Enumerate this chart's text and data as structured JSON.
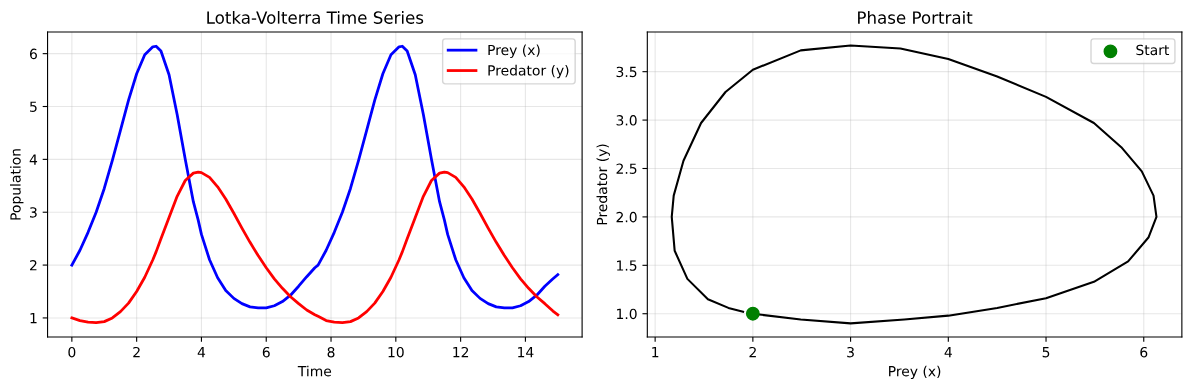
{
  "chart_data": [
    {
      "type": "line",
      "title": "Lotka-Volterra Time Series",
      "xlabel": "Time",
      "ylabel": "Population",
      "x": [
        0,
        0.25,
        0.5,
        0.75,
        1,
        1.25,
        1.5,
        1.75,
        2,
        2.25,
        2.5,
        2.6,
        2.75,
        3,
        3.25,
        3.5,
        3.75,
        3.9,
        4,
        4.25,
        4.5,
        4.75,
        5,
        5.25,
        5.5,
        5.75,
        6,
        6.25,
        6.5,
        6.75,
        7,
        7.25,
        7.5,
        7.6,
        7.85,
        8.1,
        8.35,
        8.6,
        8.85,
        9.1,
        9.35,
        9.6,
        9.85,
        10.1,
        10.2,
        10.35,
        10.6,
        10.85,
        11.1,
        11.35,
        11.5,
        11.6,
        11.85,
        12.1,
        12.35,
        12.6,
        12.85,
        13.1,
        13.35,
        13.6,
        13.85,
        14.1,
        14.35,
        14.6,
        14.85,
        15
      ],
      "series": [
        {
          "name": "Prey (x)",
          "color": "#0000ff",
          "values": [
            2.0,
            2.28,
            2.62,
            3.0,
            3.45,
            3.98,
            4.55,
            5.12,
            5.62,
            5.98,
            6.13,
            6.14,
            6.05,
            5.6,
            4.85,
            4.0,
            3.2,
            2.85,
            2.58,
            2.1,
            1.76,
            1.52,
            1.37,
            1.27,
            1.21,
            1.19,
            1.19,
            1.23,
            1.31,
            1.43,
            1.6,
            1.78,
            1.95,
            2.0,
            2.28,
            2.62,
            3.0,
            3.45,
            3.98,
            4.55,
            5.12,
            5.62,
            5.98,
            6.13,
            6.14,
            6.05,
            5.6,
            4.85,
            4.0,
            3.2,
            2.85,
            2.58,
            2.1,
            1.76,
            1.52,
            1.37,
            1.27,
            1.21,
            1.19,
            1.19,
            1.23,
            1.31,
            1.43,
            1.6,
            1.74,
            1.82
          ]
        },
        {
          "name": "Predator (y)",
          "color": "#ff0000",
          "values": [
            1.0,
            0.95,
            0.92,
            0.91,
            0.93,
            1.0,
            1.12,
            1.28,
            1.5,
            1.77,
            2.1,
            2.25,
            2.5,
            2.9,
            3.3,
            3.6,
            3.74,
            3.76,
            3.75,
            3.66,
            3.48,
            3.25,
            2.98,
            2.7,
            2.43,
            2.18,
            1.95,
            1.74,
            1.56,
            1.4,
            1.27,
            1.15,
            1.06,
            1.03,
            0.95,
            0.92,
            0.91,
            0.93,
            1.0,
            1.12,
            1.28,
            1.5,
            1.77,
            2.1,
            2.25,
            2.5,
            2.9,
            3.3,
            3.6,
            3.74,
            3.76,
            3.75,
            3.66,
            3.48,
            3.25,
            2.98,
            2.7,
            2.43,
            2.18,
            1.95,
            1.74,
            1.56,
            1.4,
            1.27,
            1.13,
            1.06
          ]
        }
      ],
      "xlim": [
        -0.75,
        15.75
      ],
      "xticks": [
        0,
        2,
        4,
        6,
        8,
        10,
        12,
        14
      ],
      "ylim": [
        0.64,
        6.41
      ],
      "yticks": [
        1,
        2,
        3,
        4,
        5,
        6
      ],
      "grid": true,
      "legend": "top right",
      "marker": "none",
      "line_style": "solid"
    },
    {
      "type": "line",
      "title": "Phase Portrait",
      "xlabel": "Prey (x)",
      "ylabel": "Predator (y)",
      "series": [
        {
          "type": "line",
          "color": "#000000",
          "x": [
            2.0,
            2.49,
            3.0,
            3.55,
            4.0,
            4.5,
            5.0,
            5.49,
            5.84,
            6.05,
            6.13,
            6.1,
            5.98,
            5.77,
            5.49,
            5.0,
            4.5,
            4.0,
            3.51,
            3.0,
            2.49,
            2.0,
            1.72,
            1.47,
            1.29,
            1.19,
            1.17,
            1.2,
            1.33,
            1.54,
            1.75,
            1.9
          ],
          "values": [
            1.0,
            0.94,
            0.9,
            0.94,
            0.98,
            1.06,
            1.16,
            1.33,
            1.54,
            1.79,
            2.0,
            2.22,
            2.47,
            2.72,
            2.97,
            3.24,
            3.45,
            3.63,
            3.74,
            3.77,
            3.72,
            3.52,
            3.29,
            2.97,
            2.58,
            2.22,
            2.0,
            1.65,
            1.36,
            1.15,
            1.06,
            1.02
          ]
        },
        {
          "name": "Start",
          "type": "scatter",
          "color": "#008000",
          "marker": "circle",
          "x": [
            2
          ],
          "values": [
            1
          ]
        }
      ],
      "xlim": [
        0.92,
        6.39
      ],
      "xticks": [
        1,
        2,
        3,
        4,
        5,
        6
      ],
      "ylim": [
        0.76,
        3.91
      ],
      "yticks": [
        {
          "value": 1.0,
          "label": "1.0"
        },
        {
          "value": 1.5,
          "label": "1.5"
        },
        {
          "value": 2.0,
          "label": "2.0"
        },
        {
          "value": 2.5,
          "label": "2.5"
        },
        {
          "value": 3.0,
          "label": "3.0"
        },
        {
          "value": 3.5,
          "label": "3.5"
        }
      ],
      "grid": true,
      "legend": "top right",
      "marker": "none",
      "line_style": "solid"
    }
  ]
}
